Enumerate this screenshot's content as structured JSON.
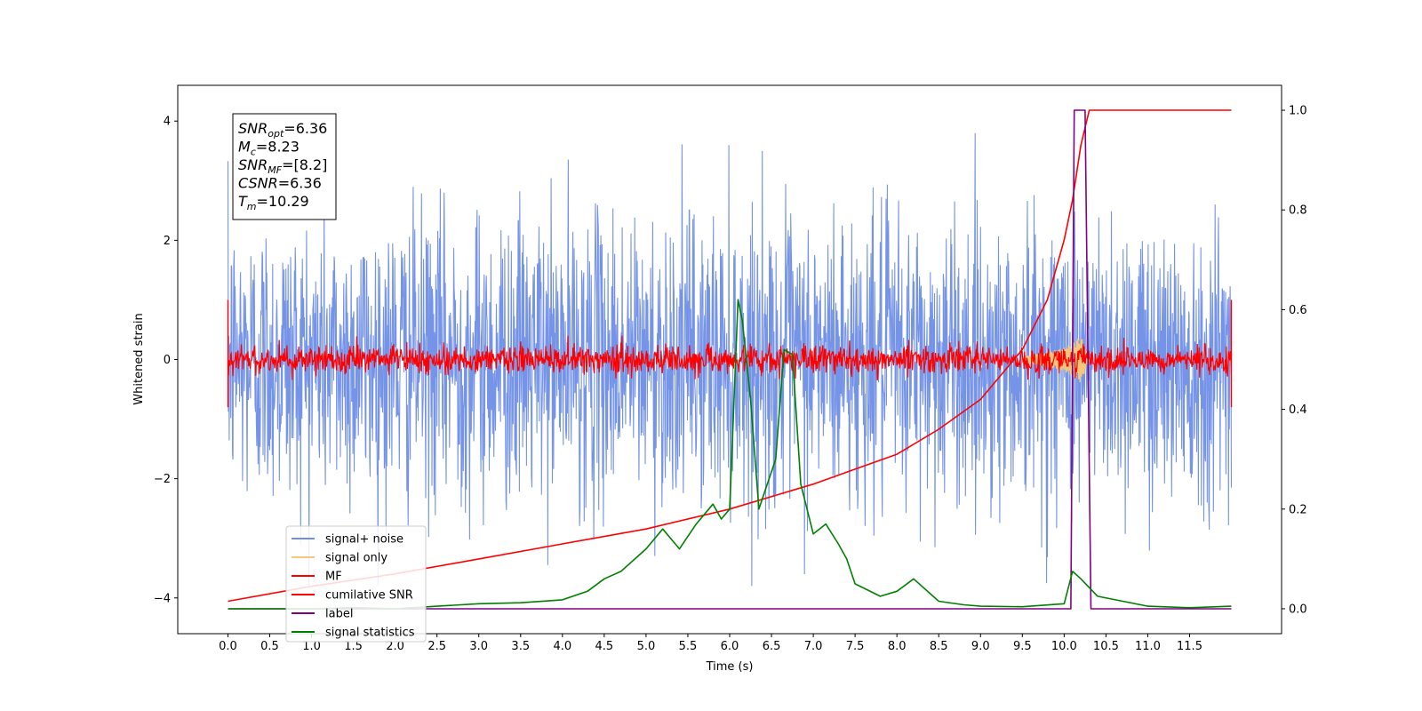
{
  "chart_data": {
    "type": "line",
    "xlabel": "Time (s)",
    "ylabel": "Whitened strain",
    "xlim": [
      -0.6,
      12.6
    ],
    "ylim": [
      -4.6,
      4.6
    ],
    "y2lim": [
      -0.05,
      1.05
    ],
    "x_ticks": [
      0.0,
      0.5,
      1.0,
      1.5,
      2.0,
      2.5,
      3.0,
      3.5,
      4.0,
      4.5,
      5.0,
      5.5,
      6.0,
      6.5,
      7.0,
      7.5,
      8.0,
      8.5,
      9.0,
      9.5,
      10.0,
      10.5,
      11.0,
      11.5
    ],
    "x_tick_labels": [
      "0.0",
      "0.5",
      "1.0",
      "1.5",
      "2.0",
      "2.5",
      "3.0",
      "3.5",
      "4.0",
      "4.5",
      "5.0",
      "5.5",
      "6.0",
      "6.5",
      "7.0",
      "7.5",
      "8.0",
      "8.5",
      "9.0",
      "9.5",
      "10.0",
      "10.5",
      "11.0",
      "11.5"
    ],
    "y_ticks": [
      -4,
      -2,
      0,
      2,
      4
    ],
    "y_tick_labels": [
      "−4",
      "−2",
      "0",
      "2",
      "4"
    ],
    "y2_ticks": [
      0.0,
      0.2,
      0.4,
      0.6,
      0.8,
      1.0
    ],
    "y2_tick_labels": [
      "0.0",
      "0.2",
      "0.4",
      "0.6",
      "0.8",
      "1.0"
    ],
    "grid": false,
    "legend_position": "lower-left",
    "annotation": {
      "lines": [
        {
          "var": "SNR",
          "sub": "opt",
          "value": "=6.36"
        },
        {
          "var": "M",
          "sub": "c",
          "value": "=8.23"
        },
        {
          "var": "SNR",
          "sub": "MF",
          "value": "=[8.2]"
        },
        {
          "var": "CSNR",
          "sub": "",
          "value": "=6.36"
        },
        {
          "var": "T",
          "sub": "m",
          "value": "=10.29"
        }
      ]
    },
    "series": [
      {
        "name": "signal+ noise",
        "axis": "left",
        "color": "#6f8ee6",
        "kind": "noise",
        "x_range": [
          0,
          12
        ],
        "envelope": 1.2,
        "peak": 3.8
      },
      {
        "name": "signal only",
        "axis": "left",
        "color": "#f5c77a",
        "kind": "chirp",
        "x": [
          9.5,
          9.8,
          10.0,
          10.1,
          10.2,
          10.3
        ],
        "amplitude": [
          0.05,
          0.12,
          0.2,
          0.28,
          0.4,
          0.0
        ]
      },
      {
        "name": "MF",
        "axis": "left",
        "color": "#ff0000",
        "kind": "noise",
        "x_range": [
          0,
          12
        ],
        "envelope": 0.12,
        "peak": 0.4
      },
      {
        "name": "cumilative SNR",
        "axis": "right",
        "color": "#ff0000",
        "x": [
          0.0,
          1.0,
          2.0,
          3.0,
          4.0,
          5.0,
          6.0,
          7.0,
          7.5,
          8.0,
          8.5,
          9.0,
          9.5,
          9.8,
          10.0,
          10.1,
          10.2,
          10.3,
          12.0
        ],
        "y": [
          0.015,
          0.045,
          0.07,
          0.1,
          0.13,
          0.16,
          0.2,
          0.25,
          0.28,
          0.31,
          0.36,
          0.42,
          0.52,
          0.62,
          0.74,
          0.82,
          0.93,
          1.0,
          1.0
        ]
      },
      {
        "name": "label",
        "axis": "right",
        "color": "#800080",
        "x": [
          0.0,
          10.08,
          10.12,
          10.25,
          10.32,
          12.0
        ],
        "y": [
          0.0,
          0.0,
          1.0,
          1.0,
          0.0,
          0.0
        ]
      },
      {
        "name": "signal statistics",
        "axis": "right",
        "color": "#008000",
        "x": [
          0.0,
          0.5,
          1.0,
          1.5,
          2.0,
          2.5,
          3.0,
          3.5,
          4.0,
          4.3,
          4.5,
          4.7,
          5.0,
          5.2,
          5.4,
          5.6,
          5.8,
          5.9,
          6.0,
          6.1,
          6.15,
          6.25,
          6.35,
          6.45,
          6.55,
          6.65,
          6.75,
          6.85,
          7.0,
          7.15,
          7.3,
          7.4,
          7.5,
          7.8,
          8.0,
          8.2,
          8.5,
          8.8,
          9.0,
          9.5,
          10.0,
          10.1,
          10.2,
          10.4,
          10.7,
          11.0,
          11.5,
          12.0
        ],
        "y": [
          0.0,
          0.0,
          0.0,
          0.002,
          0.0,
          0.005,
          0.01,
          0.012,
          0.018,
          0.035,
          0.06,
          0.075,
          0.12,
          0.16,
          0.12,
          0.17,
          0.21,
          0.18,
          0.2,
          0.62,
          0.58,
          0.42,
          0.2,
          0.25,
          0.3,
          0.52,
          0.51,
          0.25,
          0.15,
          0.17,
          0.13,
          0.1,
          0.05,
          0.025,
          0.035,
          0.06,
          0.015,
          0.008,
          0.005,
          0.004,
          0.01,
          0.075,
          0.06,
          0.025,
          0.015,
          0.005,
          0.002,
          0.005
        ]
      }
    ]
  }
}
